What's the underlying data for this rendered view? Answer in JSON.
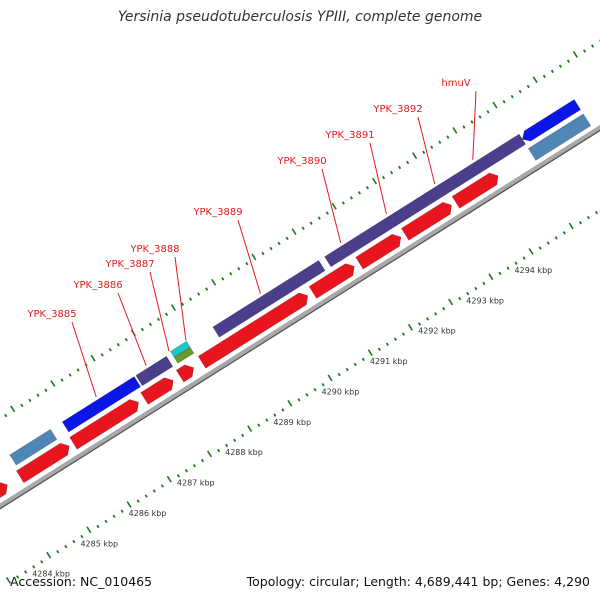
{
  "title": "Yersinia pseudotuberculosis YPIII, complete genome",
  "footer": {
    "accession": "Accession: NC_010465",
    "summary": "Topology: circular; Length: 4,689,441 bp; Genes: 4,290"
  },
  "colors": {
    "backbone": "#9a9a9a",
    "tick": "#1f7a1f",
    "forward_strand": "#e8141e",
    "gene_label": "#e31a1c",
    "cds_navy": "#4b3f8c",
    "cds_blue": "#0a15e6",
    "cds_steel": "#4f86b6",
    "cds_cyan": "#1ec6c8",
    "cds_olive": "#6b9a2a"
  },
  "scale": {
    "unit": "kbp",
    "ticks": [
      {
        "label": "4284 kbp"
      },
      {
        "label": "4285 kbp"
      },
      {
        "label": "4286 kbp"
      },
      {
        "label": "4287 kbp"
      },
      {
        "label": "4288 kbp"
      },
      {
        "label": "4289 kbp"
      },
      {
        "label": "4290 kbp"
      },
      {
        "label": "4291 kbp"
      },
      {
        "label": "4292 kbp"
      },
      {
        "label": "4293 kbp"
      },
      {
        "label": "4294 kbp"
      }
    ]
  },
  "gene_labels": [
    {
      "name": "YPK_3885"
    },
    {
      "name": "YPK_3886"
    },
    {
      "name": "YPK_3887"
    },
    {
      "name": "YPK_3888"
    },
    {
      "name": "YPK_3889"
    },
    {
      "name": "YPK_3890"
    },
    {
      "name": "YPK_3891"
    },
    {
      "name": "YPK_3892"
    },
    {
      "name": "hmuV"
    }
  ]
}
